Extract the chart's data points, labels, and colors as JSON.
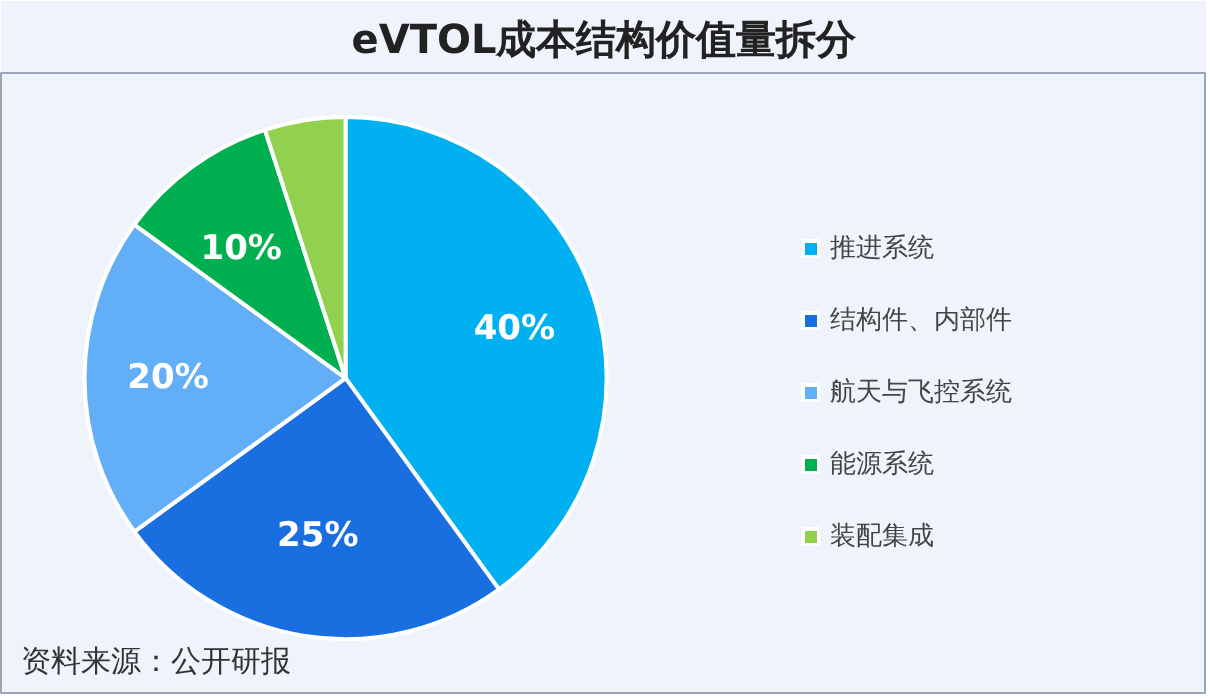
{
  "chart_data": {
    "type": "pie",
    "title": "eVTOL成本结构价值量拆分",
    "categories": [
      "推进系统",
      "结构件、内部件",
      "航天与飞控系统",
      "能源系统",
      "装配集成"
    ],
    "values": [
      40,
      25,
      20,
      10,
      5
    ],
    "colors": [
      "#00b0f0",
      "#1a6fe0",
      "#62aef7",
      "#00b050",
      "#92d050"
    ],
    "value_labels": [
      "40%",
      "25%",
      "20%",
      "10%",
      null
    ],
    "legend": "right",
    "annotations": [
      "资料来源：公开研报"
    ]
  }
}
